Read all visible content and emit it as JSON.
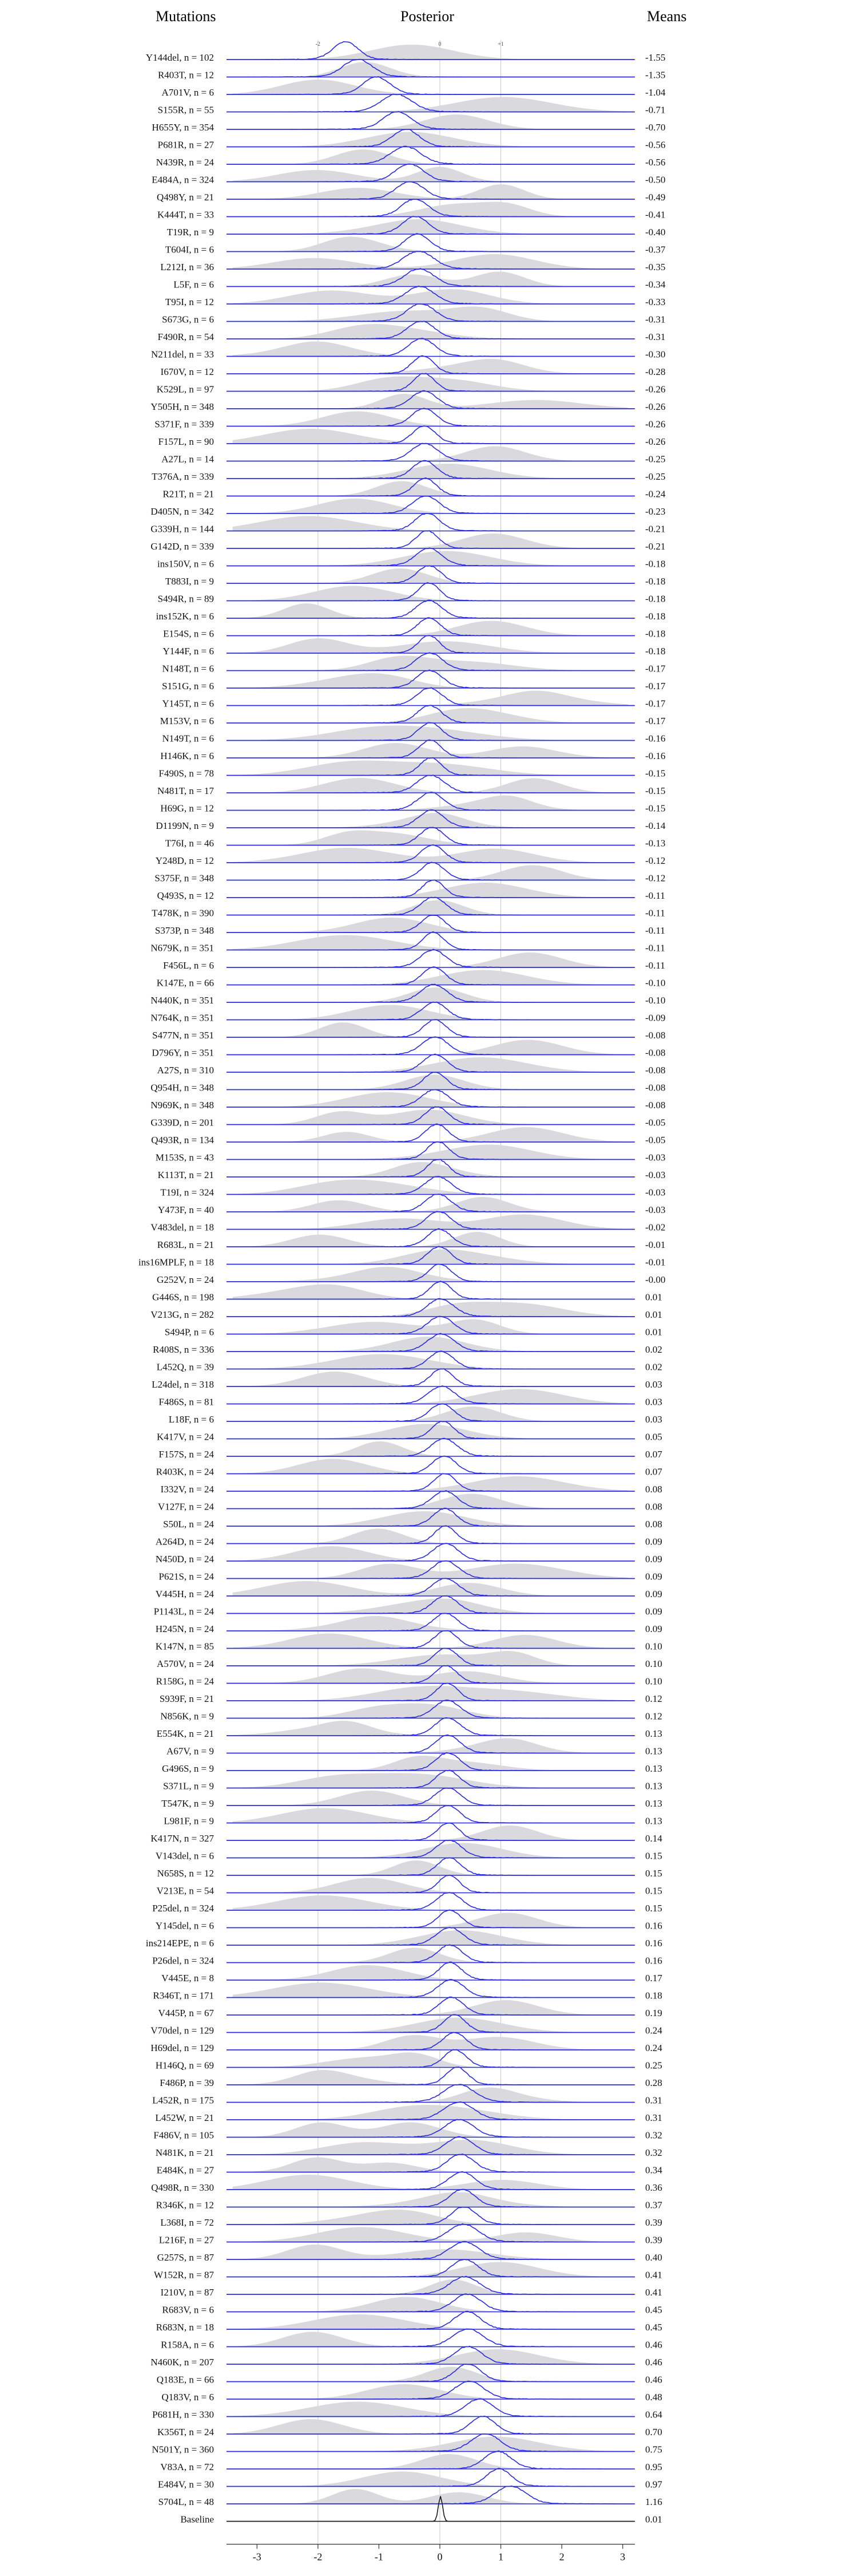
{
  "headers": {
    "left": "Mutations",
    "center": "Posterior",
    "right": "Means"
  },
  "chart_data": {
    "type": "ridgeline",
    "xlim": [
      -3.5,
      3.2
    ],
    "x_ticks": [
      -3,
      -2,
      -1,
      0,
      1,
      2,
      3
    ],
    "top_ticks": [
      -2,
      0,
      1
    ],
    "x_ticks_labels": [
      "-3",
      "-2",
      "-1",
      "0",
      "1",
      "2",
      "3"
    ],
    "top_ticks_labels": [
      "-2",
      "0",
      "+1"
    ],
    "colors": {
      "posterior": "#2a2ae0",
      "prior_fill": "#d9d9de",
      "reference_line": "#c8c8c8",
      "baseline_line": "#1a1a1a"
    },
    "rows": [
      {
        "label": "Y144del, n = 102",
        "mean": "-1.55"
      },
      {
        "label": "R403T, n = 12",
        "mean": "-1.35"
      },
      {
        "label": "A701V, n = 6",
        "mean": "-1.04"
      },
      {
        "label": "S155R, n = 55",
        "mean": "-0.71"
      },
      {
        "label": "H655Y, n = 354",
        "mean": "-0.70"
      },
      {
        "label": "P681R, n = 27",
        "mean": "-0.56"
      },
      {
        "label": "N439R, n = 24",
        "mean": "-0.56"
      },
      {
        "label": "E484A, n = 324",
        "mean": "-0.50"
      },
      {
        "label": "Q498Y, n = 21",
        "mean": "-0.49"
      },
      {
        "label": "K444T, n = 33",
        "mean": "-0.41"
      },
      {
        "label": "T19R, n = 9",
        "mean": "-0.40"
      },
      {
        "label": "T604I, n = 6",
        "mean": "-0.37"
      },
      {
        "label": "L212I, n = 36",
        "mean": "-0.35"
      },
      {
        "label": "L5F, n = 6",
        "mean": "-0.34"
      },
      {
        "label": "T95I, n = 12",
        "mean": "-0.33"
      },
      {
        "label": "S673G, n = 6",
        "mean": "-0.31"
      },
      {
        "label": "F490R, n = 54",
        "mean": "-0.31"
      },
      {
        "label": "N211del, n = 33",
        "mean": "-0.30"
      },
      {
        "label": "I670V, n = 12",
        "mean": "-0.28"
      },
      {
        "label": "K529L, n = 97",
        "mean": "-0.26"
      },
      {
        "label": "Y505H, n = 348",
        "mean": "-0.26"
      },
      {
        "label": "S371F, n = 339",
        "mean": "-0.26"
      },
      {
        "label": "F157L, n = 90",
        "mean": "-0.26"
      },
      {
        "label": "A27L, n = 14",
        "mean": "-0.25"
      },
      {
        "label": "T376A, n = 339",
        "mean": "-0.25"
      },
      {
        "label": "R21T, n = 21",
        "mean": "-0.24"
      },
      {
        "label": "D405N, n = 342",
        "mean": "-0.23"
      },
      {
        "label": "G339H, n = 144",
        "mean": "-0.21"
      },
      {
        "label": "G142D, n = 339",
        "mean": "-0.21"
      },
      {
        "label": "ins150V, n = 6",
        "mean": "-0.18"
      },
      {
        "label": "T883I, n = 9",
        "mean": "-0.18"
      },
      {
        "label": "S494R, n = 89",
        "mean": "-0.18"
      },
      {
        "label": "ins152K, n = 6",
        "mean": "-0.18"
      },
      {
        "label": "E154S, n = 6",
        "mean": "-0.18"
      },
      {
        "label": "Y144F, n = 6",
        "mean": "-0.18"
      },
      {
        "label": "N148T, n = 6",
        "mean": "-0.17"
      },
      {
        "label": "S151G, n = 6",
        "mean": "-0.17"
      },
      {
        "label": "Y145T, n = 6",
        "mean": "-0.17"
      },
      {
        "label": "M153V, n = 6",
        "mean": "-0.17"
      },
      {
        "label": "N149T, n = 6",
        "mean": "-0.16"
      },
      {
        "label": "H146K, n = 6",
        "mean": "-0.16"
      },
      {
        "label": "F490S, n = 78",
        "mean": "-0.15"
      },
      {
        "label": "N481T, n = 17",
        "mean": "-0.15"
      },
      {
        "label": "H69G, n = 12",
        "mean": "-0.15"
      },
      {
        "label": "D1199N, n = 9",
        "mean": "-0.14"
      },
      {
        "label": "T76I, n = 46",
        "mean": "-0.13"
      },
      {
        "label": "Y248D, n = 12",
        "mean": "-0.12"
      },
      {
        "label": "S375F, n = 348",
        "mean": "-0.12"
      },
      {
        "label": "Q493S, n = 12",
        "mean": "-0.11"
      },
      {
        "label": "T478K, n = 390",
        "mean": "-0.11"
      },
      {
        "label": "S373P, n = 348",
        "mean": "-0.11"
      },
      {
        "label": "N679K, n = 351",
        "mean": "-0.11"
      },
      {
        "label": "F456L, n = 6",
        "mean": "-0.11"
      },
      {
        "label": "K147E, n = 66",
        "mean": "-0.10"
      },
      {
        "label": "N440K, n = 351",
        "mean": "-0.10"
      },
      {
        "label": "N764K, n = 351",
        "mean": "-0.09"
      },
      {
        "label": "S477N, n = 351",
        "mean": "-0.08"
      },
      {
        "label": "D796Y, n = 351",
        "mean": "-0.08"
      },
      {
        "label": "A27S, n = 310",
        "mean": "-0.08"
      },
      {
        "label": "Q954H, n = 348",
        "mean": "-0.08"
      },
      {
        "label": "N969K, n = 348",
        "mean": "-0.08"
      },
      {
        "label": "G339D, n = 201",
        "mean": "-0.05"
      },
      {
        "label": "Q493R, n = 134",
        "mean": "-0.05"
      },
      {
        "label": "M153S, n = 43",
        "mean": "-0.03"
      },
      {
        "label": "K113T, n = 21",
        "mean": "-0.03"
      },
      {
        "label": "T19I, n = 324",
        "mean": "-0.03"
      },
      {
        "label": "Y473F, n = 40",
        "mean": "-0.03"
      },
      {
        "label": "V483del, n = 18",
        "mean": "-0.02"
      },
      {
        "label": "R683L, n = 21",
        "mean": "-0.01"
      },
      {
        "label": "ins16MPLF, n = 18",
        "mean": "-0.01"
      },
      {
        "label": "G252V, n = 24",
        "mean": "-0.00"
      },
      {
        "label": "G446S, n = 198",
        "mean": "0.01"
      },
      {
        "label": "V213G, n = 282",
        "mean": "0.01"
      },
      {
        "label": "S494P, n = 6",
        "mean": "0.01"
      },
      {
        "label": "R408S, n = 336",
        "mean": "0.02"
      },
      {
        "label": "L452Q, n = 39",
        "mean": "0.02"
      },
      {
        "label": "L24del, n = 318",
        "mean": "0.03"
      },
      {
        "label": "F486S, n = 81",
        "mean": "0.03"
      },
      {
        "label": "L18F, n = 6",
        "mean": "0.03"
      },
      {
        "label": "K417V, n = 24",
        "mean": "0.05"
      },
      {
        "label": "F157S, n = 24",
        "mean": "0.07"
      },
      {
        "label": "R403K, n = 24",
        "mean": "0.07"
      },
      {
        "label": "I332V, n = 24",
        "mean": "0.08"
      },
      {
        "label": "V127F, n = 24",
        "mean": "0.08"
      },
      {
        "label": "S50L, n = 24",
        "mean": "0.08"
      },
      {
        "label": "A264D, n = 24",
        "mean": "0.09"
      },
      {
        "label": "N450D, n = 24",
        "mean": "0.09"
      },
      {
        "label": "P621S, n = 24",
        "mean": "0.09"
      },
      {
        "label": "V445H, n = 24",
        "mean": "0.09"
      },
      {
        "label": "P1143L, n = 24",
        "mean": "0.09"
      },
      {
        "label": "H245N, n = 24",
        "mean": "0.09"
      },
      {
        "label": "K147N, n = 85",
        "mean": "0.10"
      },
      {
        "label": "A570V, n = 24",
        "mean": "0.10"
      },
      {
        "label": "R158G, n = 24",
        "mean": "0.10"
      },
      {
        "label": "S939F, n = 21",
        "mean": "0.12"
      },
      {
        "label": "N856K, n = 9",
        "mean": "0.12"
      },
      {
        "label": "E554K, n = 21",
        "mean": "0.13"
      },
      {
        "label": "A67V, n = 9",
        "mean": "0.13"
      },
      {
        "label": "G496S, n = 9",
        "mean": "0.13"
      },
      {
        "label": "S371L, n = 9",
        "mean": "0.13"
      },
      {
        "label": "T547K, n = 9",
        "mean": "0.13"
      },
      {
        "label": "L981F, n = 9",
        "mean": "0.13"
      },
      {
        "label": "K417N, n = 327",
        "mean": "0.14"
      },
      {
        "label": "V143del, n = 6",
        "mean": "0.15"
      },
      {
        "label": "N658S, n = 12",
        "mean": "0.15"
      },
      {
        "label": "V213E, n = 54",
        "mean": "0.15"
      },
      {
        "label": "P25del, n = 324",
        "mean": "0.15"
      },
      {
        "label": "Y145del, n = 6",
        "mean": "0.16"
      },
      {
        "label": "ins214EPE, n = 6",
        "mean": "0.16"
      },
      {
        "label": "P26del, n = 324",
        "mean": "0.16"
      },
      {
        "label": "V445E, n = 8",
        "mean": "0.17"
      },
      {
        "label": "R346T, n = 171",
        "mean": "0.18"
      },
      {
        "label": "V445P, n = 67",
        "mean": "0.19"
      },
      {
        "label": "V70del, n = 129",
        "mean": "0.24"
      },
      {
        "label": "H69del, n = 129",
        "mean": "0.24"
      },
      {
        "label": "H146Q, n = 69",
        "mean": "0.25"
      },
      {
        "label": "F486P, n = 39",
        "mean": "0.28"
      },
      {
        "label": "L452R, n = 175",
        "mean": "0.31"
      },
      {
        "label": "L452W, n = 21",
        "mean": "0.31"
      },
      {
        "label": "F486V, n = 105",
        "mean": "0.32"
      },
      {
        "label": "N481K, n = 21",
        "mean": "0.32"
      },
      {
        "label": "E484K, n = 27",
        "mean": "0.34"
      },
      {
        "label": "Q498R, n = 330",
        "mean": "0.36"
      },
      {
        "label": "R346K, n = 12",
        "mean": "0.37"
      },
      {
        "label": "L368I, n = 72",
        "mean": "0.39"
      },
      {
        "label": "L216F, n = 27",
        "mean": "0.39"
      },
      {
        "label": "G257S, n = 87",
        "mean": "0.40"
      },
      {
        "label": "W152R, n = 87",
        "mean": "0.41"
      },
      {
        "label": "I210V, n = 87",
        "mean": "0.41"
      },
      {
        "label": "R683V, n = 6",
        "mean": "0.45"
      },
      {
        "label": "R683N, n = 18",
        "mean": "0.45"
      },
      {
        "label": "R158A, n = 6",
        "mean": "0.46"
      },
      {
        "label": "N460K, n = 207",
        "mean": "0.46"
      },
      {
        "label": "Q183E, n = 66",
        "mean": "0.46"
      },
      {
        "label": "Q183V, n = 6",
        "mean": "0.48"
      },
      {
        "label": "P681H, n = 330",
        "mean": "0.64"
      },
      {
        "label": "K356T, n = 24",
        "mean": "0.70"
      },
      {
        "label": "N501Y, n = 360",
        "mean": "0.75"
      },
      {
        "label": "V83A, n = 72",
        "mean": "0.95"
      },
      {
        "label": "E484V, n = 30",
        "mean": "0.97"
      },
      {
        "label": "S704L, n = 48",
        "mean": "1.16"
      },
      {
        "label": "Baseline",
        "mean": "0.01"
      }
    ]
  }
}
